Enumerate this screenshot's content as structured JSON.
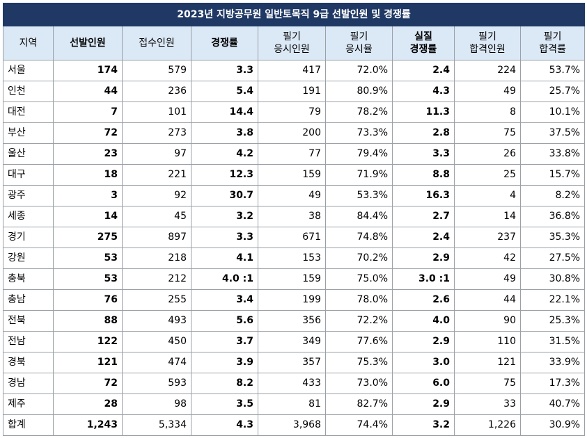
{
  "title": "2023년 지방공무원 일반토목직 9급 선발인원 및 경쟁률",
  "headers": [
    {
      "l1": "지역",
      "l2": "",
      "bold": false
    },
    {
      "l1": "선발인원",
      "l2": "",
      "bold": true
    },
    {
      "l1": "접수인원",
      "l2": "",
      "bold": false
    },
    {
      "l1": "경쟁률",
      "l2": "",
      "bold": true
    },
    {
      "l1": "필기",
      "l2": "응시인원",
      "bold": false
    },
    {
      "l1": "필기",
      "l2": "응시율",
      "bold": false
    },
    {
      "l1": "실질",
      "l2": "경쟁률",
      "bold": true
    },
    {
      "l1": "필기",
      "l2": "합격인원",
      "bold": false
    },
    {
      "l1": "필기",
      "l2": "합격률",
      "bold": false
    }
  ],
  "rows": [
    [
      "서울",
      "174",
      "579",
      "3.3",
      "417",
      "72.0%",
      "2.4",
      "224",
      "53.7%"
    ],
    [
      "인천",
      "44",
      "236",
      "5.4",
      "191",
      "80.9%",
      "4.3",
      "49",
      "25.7%"
    ],
    [
      "대전",
      "7",
      "101",
      "14.4",
      "79",
      "78.2%",
      "11.3",
      "8",
      "10.1%"
    ],
    [
      "부산",
      "72",
      "273",
      "3.8",
      "200",
      "73.3%",
      "2.8",
      "75",
      "37.5%"
    ],
    [
      "울산",
      "23",
      "97",
      "4.2",
      "77",
      "79.4%",
      "3.3",
      "26",
      "33.8%"
    ],
    [
      "대구",
      "18",
      "221",
      "12.3",
      "159",
      "71.9%",
      "8.8",
      "25",
      "15.7%"
    ],
    [
      "광주",
      "3",
      "92",
      "30.7",
      "49",
      "53.3%",
      "16.3",
      "4",
      "8.2%"
    ],
    [
      "세종",
      "14",
      "45",
      "3.2",
      "38",
      "84.4%",
      "2.7",
      "14",
      "36.8%"
    ],
    [
      "경기",
      "275",
      "897",
      "3.3",
      "671",
      "74.8%",
      "2.4",
      "237",
      "35.3%"
    ],
    [
      "강원",
      "53",
      "218",
      "4.1",
      "153",
      "70.2%",
      "2.9",
      "42",
      "27.5%"
    ],
    [
      "충북",
      "53",
      "212",
      "4.0 :1",
      "159",
      "75.0%",
      "3.0 :1",
      "49",
      "30.8%"
    ],
    [
      "충남",
      "76",
      "255",
      "3.4",
      "199",
      "78.0%",
      "2.6",
      "44",
      "22.1%"
    ],
    [
      "전북",
      "88",
      "493",
      "5.6",
      "356",
      "72.2%",
      "4.0",
      "90",
      "25.3%"
    ],
    [
      "전남",
      "122",
      "450",
      "3.7",
      "349",
      "77.6%",
      "2.9",
      "110",
      "31.5%"
    ],
    [
      "경북",
      "121",
      "474",
      "3.9",
      "357",
      "75.3%",
      "3.0",
      "121",
      "33.9%"
    ],
    [
      "경남",
      "72",
      "593",
      "8.2",
      "433",
      "73.0%",
      "6.0",
      "75",
      "17.3%"
    ],
    [
      "제주",
      "28",
      "98",
      "3.5",
      "81",
      "82.7%",
      "2.9",
      "33",
      "40.7%"
    ],
    [
      "합계",
      "1,243",
      "5,334",
      "4.3",
      "3,968",
      "74.4%",
      "3.2",
      "1,226",
      "30.9%"
    ]
  ],
  "bold_columns": [
    1,
    3,
    6
  ]
}
